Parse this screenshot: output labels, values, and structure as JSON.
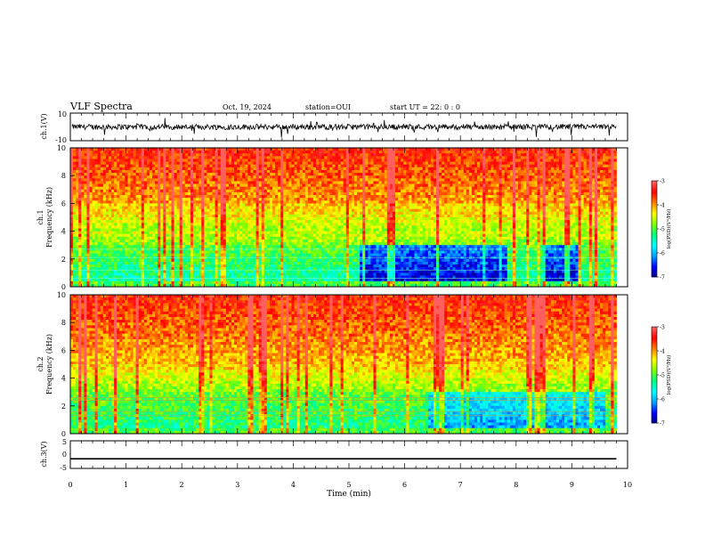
{
  "header": {
    "title": "VLF Spectra",
    "date": "Oct. 19, 2024",
    "station": "station=OUI",
    "start": "start UT = 22: 0 : 0"
  },
  "colors": {
    "scale": [
      "#000080",
      "#0000ff",
      "#00a0ff",
      "#00ffff",
      "#00ff80",
      "#80ff00",
      "#ffff00",
      "#ff8000",
      "#ff0000",
      "#ff6060",
      "#ffffff"
    ]
  },
  "chart_data": [
    {
      "type": "line",
      "name": "ch1-waveform",
      "ylabel": "ch.1(V)",
      "ylim": [
        -10,
        10
      ],
      "yticks": [
        "10",
        "-10"
      ],
      "xlim": [
        0,
        10
      ],
      "baseline": 0,
      "noise_range": [
        -2,
        2
      ]
    },
    {
      "type": "heatmap",
      "name": "ch1-spectrogram",
      "ylabel": "ch.1\nFrequency (kHz)",
      "ylim": [
        0,
        10
      ],
      "yticks": [
        "0",
        "2",
        "4",
        "6",
        "8",
        "10"
      ],
      "xlim": [
        0,
        10
      ],
      "data_end_min": 9.8,
      "colorbar": {
        "label": "log(PSD)(V²/Hz)",
        "range": [
          -7,
          -3
        ],
        "ticks": [
          "-3",
          "-4",
          "-5",
          "-6",
          "-7"
        ]
      },
      "quiet_intervals_min": [
        [
          5.15,
          7.8
        ],
        [
          8.45,
          9.1
        ]
      ]
    },
    {
      "type": "heatmap",
      "name": "ch2-spectrogram",
      "ylabel": "ch.2\nFrequency (kHz)",
      "ylim": [
        0,
        10
      ],
      "yticks": [
        "0",
        "2",
        "4",
        "6",
        "8",
        "10"
      ],
      "xlim": [
        0,
        10
      ],
      "data_end_min": 9.8,
      "colorbar": {
        "label": "log(PSD)(V²/Hz)",
        "range": [
          -7,
          -3
        ],
        "ticks": [
          "-3",
          "-4",
          "-5",
          "-6",
          "-7"
        ]
      },
      "quiet_intervals_min": [
        [
          6.4,
          9.6
        ]
      ]
    },
    {
      "type": "line",
      "name": "ch3-waveform",
      "ylabel": "ch.3(V)",
      "ylim": [
        -5,
        5
      ],
      "yticks": [
        "5",
        "0",
        "-5"
      ],
      "xlim": [
        0,
        10
      ],
      "baseline": -1.5
    }
  ],
  "xaxis": {
    "label": "Time (min)",
    "ticks": [
      "0",
      "1",
      "2",
      "3",
      "4",
      "5",
      "6",
      "7",
      "8",
      "9",
      "10"
    ]
  }
}
